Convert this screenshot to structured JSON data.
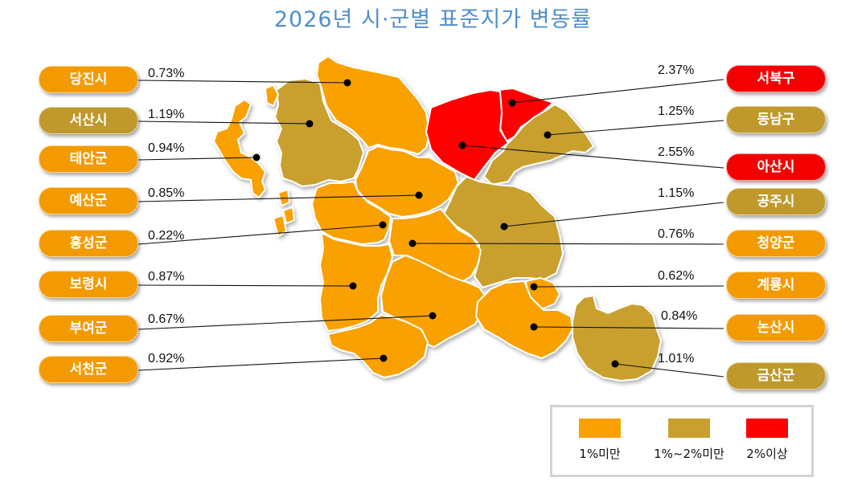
{
  "title": "2026년 시·군별 표준지가 변동률",
  "colors": {
    "under_1": "#f9a100",
    "between_1_2": "#c9a02f",
    "over_2": "#fe0000",
    "badge_under_1": "#f39a00",
    "badge_between_1_2": "#bf992b",
    "badge_over_2": "#f40000"
  },
  "legend": {
    "items": [
      {
        "label": "1%미만",
        "category": "under_1"
      },
      {
        "label": "1%~2%미만",
        "category": "between_1_2"
      },
      {
        "label": "2%이상",
        "category": "over_2"
      }
    ]
  },
  "regions_left": [
    {
      "name": "당진시",
      "rate": "0.73%",
      "category": "under_1"
    },
    {
      "name": "서산시",
      "rate": "1.19%",
      "category": "between_1_2"
    },
    {
      "name": "태안군",
      "rate": "0.94%",
      "category": "under_1"
    },
    {
      "name": "예산군",
      "rate": "0.85%",
      "category": "under_1"
    },
    {
      "name": "홍성군",
      "rate": "0.22%",
      "category": "under_1"
    },
    {
      "name": "보령시",
      "rate": "0.87%",
      "category": "under_1"
    },
    {
      "name": "부여군",
      "rate": "0.67%",
      "category": "under_1"
    },
    {
      "name": "서천군",
      "rate": "0.92%",
      "category": "under_1"
    }
  ],
  "regions_right": [
    {
      "name": "서북구",
      "rate": "2.37%",
      "category": "over_2"
    },
    {
      "name": "동남구",
      "rate": "1.25%",
      "category": "between_1_2"
    },
    {
      "name": "아산시",
      "rate": "2.55%",
      "category": "over_2"
    },
    {
      "name": "공주시",
      "rate": "1.15%",
      "category": "between_1_2"
    },
    {
      "name": "청양군",
      "rate": "0.76%",
      "category": "under_1"
    },
    {
      "name": "계룡시",
      "rate": "0.62%",
      "category": "under_1"
    },
    {
      "name": "논산시",
      "rate": "0.84%",
      "category": "under_1"
    },
    {
      "name": "금산군",
      "rate": "1.01%",
      "category": "between_1_2"
    }
  ]
}
